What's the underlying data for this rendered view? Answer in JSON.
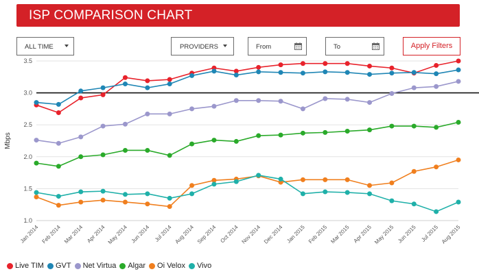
{
  "banner": {
    "title": "ISP COMPARISON CHART"
  },
  "controls": {
    "time_range": "ALL TIME",
    "providers": "PROVIDERS",
    "from": "From",
    "to": "To",
    "apply": "Apply Filters"
  },
  "chart_data": {
    "type": "line",
    "ylabel": "Mbps",
    "xlabel": "",
    "ylim": [
      1.0,
      3.5
    ],
    "yticks": [
      "1.0",
      "1.5",
      "2.0",
      "2.5",
      "3.0",
      "3.5"
    ],
    "reference_line": 3.0,
    "grid": true,
    "legend_position": "bottom-left",
    "categories": [
      "Jan 2014",
      "Feb 2014",
      "Mar 2014",
      "Apr 2014",
      "May 2014",
      "Jun 2014",
      "Jul 2014",
      "Aug 2014",
      "Sep 2014",
      "Oct 2014",
      "Nov 2014",
      "Dec 2014",
      "Jan 2015",
      "Feb 2015",
      "Mar 2015",
      "Apr 2015",
      "May 2015",
      "Jun 2015",
      "Jul 2015",
      "Aug 2015"
    ],
    "series": [
      {
        "name": "Live TIM",
        "color": "#e8222b",
        "values": [
          2.81,
          2.69,
          2.92,
          2.97,
          3.24,
          3.19,
          3.21,
          3.31,
          3.39,
          3.34,
          3.4,
          3.44,
          3.46,
          3.46,
          3.46,
          3.42,
          3.39,
          3.31,
          3.43,
          3.5
        ]
      },
      {
        "name": "GVT",
        "color": "#1f86b5",
        "values": [
          2.85,
          2.82,
          3.03,
          3.08,
          3.14,
          3.08,
          3.14,
          3.27,
          3.34,
          3.28,
          3.33,
          3.32,
          3.31,
          3.33,
          3.32,
          3.29,
          3.31,
          3.32,
          3.3,
          3.36
        ]
      },
      {
        "name": "Net Virtua",
        "color": "#9b97cc",
        "values": [
          2.26,
          2.21,
          2.31,
          2.48,
          2.51,
          2.67,
          2.67,
          2.75,
          2.79,
          2.88,
          2.88,
          2.87,
          2.75,
          2.91,
          2.9,
          2.85,
          2.99,
          3.08,
          3.1,
          3.18
        ]
      },
      {
        "name": "Algar",
        "color": "#2aaa2a",
        "values": [
          1.9,
          1.85,
          2.0,
          2.03,
          2.1,
          2.1,
          2.02,
          2.2,
          2.26,
          2.24,
          2.33,
          2.34,
          2.37,
          2.38,
          2.4,
          2.42,
          2.48,
          2.48,
          2.46,
          2.54
        ]
      },
      {
        "name": "Oi Velox",
        "color": "#f07f1e",
        "values": [
          1.37,
          1.24,
          1.29,
          1.32,
          1.29,
          1.26,
          1.22,
          1.55,
          1.63,
          1.65,
          1.7,
          1.6,
          1.64,
          1.64,
          1.64,
          1.55,
          1.59,
          1.77,
          1.84,
          1.95
        ]
      },
      {
        "name": "Vivo",
        "color": "#1fb0a9",
        "values": [
          1.44,
          1.38,
          1.45,
          1.46,
          1.41,
          1.42,
          1.35,
          1.42,
          1.57,
          1.61,
          1.71,
          1.65,
          1.42,
          1.45,
          1.44,
          1.42,
          1.31,
          1.26,
          1.14,
          1.29
        ]
      }
    ]
  }
}
